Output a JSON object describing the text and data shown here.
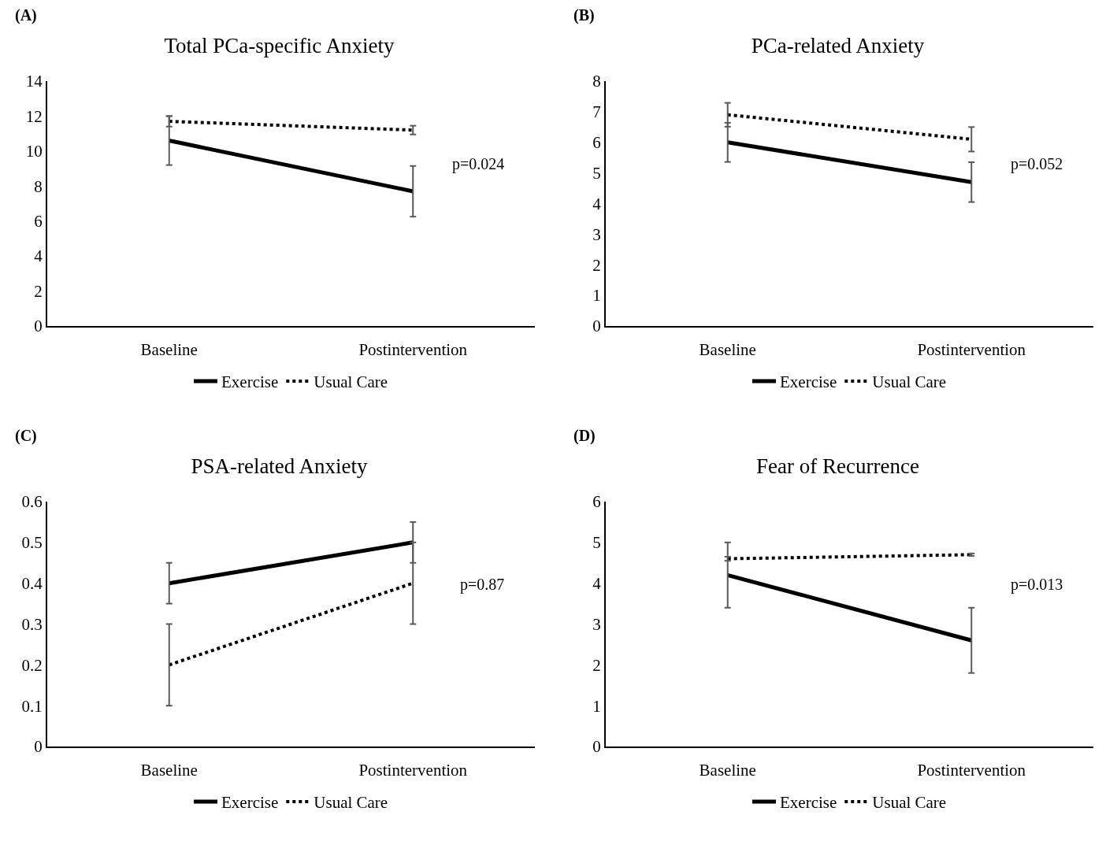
{
  "chart_data": [
    {
      "type": "line",
      "title": "Total PCa-specific Anxiety",
      "categories": [
        "Baseline",
        "Postintervention"
      ],
      "ylim": [
        0,
        14
      ],
      "yticks": [
        0,
        2,
        4,
        6,
        8,
        10,
        12,
        14
      ],
      "grid": false,
      "legend": "bottom",
      "marker": "none",
      "annotations": [
        "(A)",
        "p=0.024"
      ],
      "series": [
        {
          "name": "Exercise",
          "color": "#000000",
          "line_style": "solid",
          "values": [
            10.6,
            7.7
          ],
          "errors": [
            1.4,
            1.45
          ]
        },
        {
          "name": "Usual Care",
          "color": "#000000",
          "line_style": "dotted",
          "values": [
            11.7,
            11.2
          ],
          "errors": [
            0.3,
            0.25
          ]
        }
      ]
    },
    {
      "type": "line",
      "title": "PCa-related Anxiety",
      "categories": [
        "Baseline",
        "Postintervention"
      ],
      "ylim": [
        0,
        8
      ],
      "yticks": [
        0,
        1,
        2,
        3,
        4,
        5,
        6,
        7,
        8
      ],
      "grid": false,
      "legend": "bottom",
      "marker": "none",
      "annotations": [
        "(B)",
        "p=0.052"
      ],
      "series": [
        {
          "name": "Exercise",
          "color": "#000000",
          "line_style": "solid",
          "values": [
            6.0,
            4.7
          ],
          "errors": [
            0.64,
            0.65
          ]
        },
        {
          "name": "Usual Care",
          "color": "#000000",
          "line_style": "dotted",
          "values": [
            6.9,
            6.1
          ],
          "errors": [
            0.39,
            0.4
          ]
        }
      ]
    },
    {
      "type": "line",
      "title": "PSA-related Anxiety",
      "categories": [
        "Baseline",
        "Postintervention"
      ],
      "ylim": [
        0,
        0.6
      ],
      "yticks": [
        0,
        0.1,
        0.2,
        0.3,
        0.4,
        0.5,
        0.6
      ],
      "grid": false,
      "legend": "bottom",
      "marker": "none",
      "annotations": [
        "(C)",
        "p=0.87"
      ],
      "series": [
        {
          "name": "Exercise",
          "color": "#000000",
          "line_style": "solid",
          "values": [
            0.4,
            0.5
          ],
          "errors": [
            0.05,
            0.05
          ]
        },
        {
          "name": "Usual Care",
          "color": "#000000",
          "line_style": "dotted",
          "values": [
            0.2,
            0.4
          ],
          "errors": [
            0.1,
            0.1
          ]
        }
      ]
    },
    {
      "type": "line",
      "title": "Fear of Recurrence",
      "categories": [
        "Baseline",
        "Postintervention"
      ],
      "ylim": [
        0,
        6
      ],
      "yticks": [
        0,
        1,
        2,
        3,
        4,
        5,
        6
      ],
      "grid": false,
      "legend": "bottom",
      "marker": "none",
      "annotations": [
        "(D)",
        "p=0.013"
      ],
      "series": [
        {
          "name": "Exercise",
          "color": "#000000",
          "line_style": "solid",
          "values": [
            4.2,
            2.6
          ],
          "errors": [
            0.8,
            0.8
          ]
        },
        {
          "name": "Usual Care",
          "color": "#000000",
          "line_style": "dotted",
          "values": [
            4.6,
            4.7
          ],
          "errors": [
            0.05,
            0.03
          ]
        }
      ]
    }
  ]
}
